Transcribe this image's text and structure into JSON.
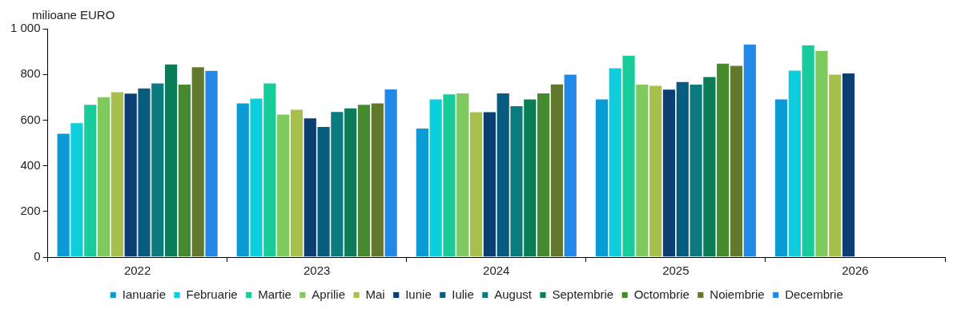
{
  "chart_data": {
    "type": "bar",
    "ylabel": "milioane EURO",
    "categories": [
      "2022",
      "2023",
      "2024",
      "2025",
      "2026"
    ],
    "ylim": [
      0,
      1000
    ],
    "yticks": [
      0,
      200,
      400,
      600,
      800,
      {
        "value": 1000,
        "label": "1 000"
      }
    ],
    "grid": false,
    "legend": "bottom",
    "series": [
      {
        "name": "Ianuarie",
        "color": "#0a9bd6",
        "values": [
          543,
          676,
          566,
          693,
          693
        ]
      },
      {
        "name": "Februarie",
        "color": "#0dcfdc",
        "values": [
          589,
          697,
          693,
          830,
          819
        ]
      },
      {
        "name": "Martie",
        "color": "#17cc9a",
        "values": [
          670,
          763,
          715,
          885,
          930
        ]
      },
      {
        "name": "Aprilie",
        "color": "#7fc95e",
        "values": [
          703,
          627,
          720,
          758,
          906
        ]
      },
      {
        "name": "Mai",
        "color": "#a7c04c",
        "values": [
          725,
          648,
          637,
          753,
          802
        ]
      },
      {
        "name": "Iunie",
        "color": "#0b3f73",
        "values": [
          719,
          610,
          637,
          736,
          807
        ]
      },
      {
        "name": "Iulie",
        "color": "#085c80",
        "values": [
          741,
          573,
          720,
          769,
          null
        ]
      },
      {
        "name": "August",
        "color": "#0b7b80",
        "values": [
          763,
          638,
          664,
          758,
          null
        ]
      },
      {
        "name": "Septembrie",
        "color": "#0c7b58",
        "values": [
          846,
          654,
          693,
          791,
          null
        ]
      },
      {
        "name": "Octombrie",
        "color": "#468a2e",
        "values": [
          758,
          670,
          720,
          850,
          null
        ]
      },
      {
        "name": "Noiembrie",
        "color": "#62782c",
        "values": [
          834,
          676,
          759,
          840,
          null
        ]
      },
      {
        "name": "Decembrie",
        "color": "#2389e6",
        "values": [
          818,
          737,
          802,
          934,
          null
        ]
      }
    ]
  }
}
